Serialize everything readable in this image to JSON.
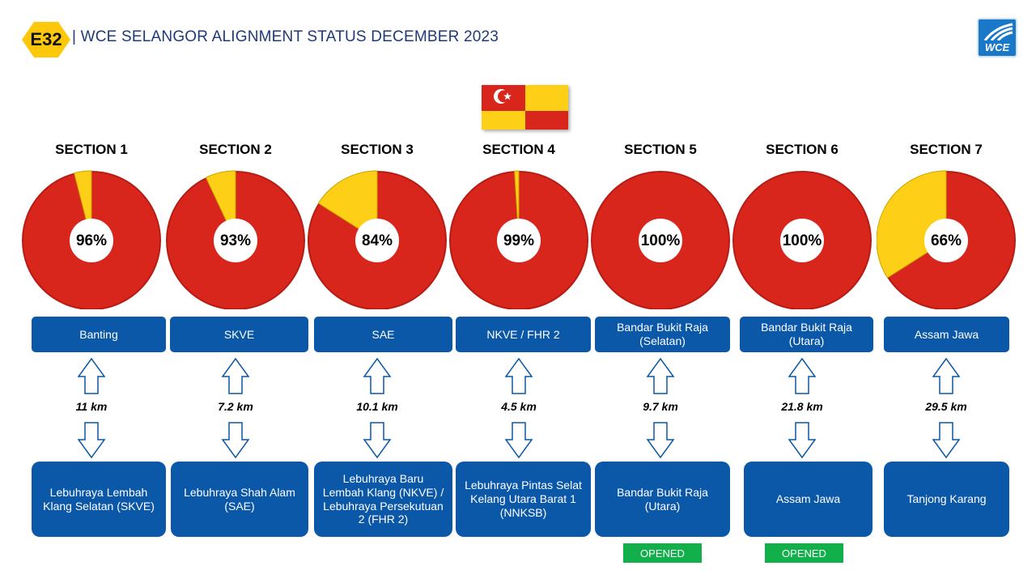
{
  "header": {
    "badge": "E32",
    "title": "| WCE SELANGOR ALIGNMENT STATUS DECEMBER 2023",
    "logo": "WCE"
  },
  "colors": {
    "red": "#d8261c",
    "yellow": "#fdd017",
    "blue": "#0b57a8",
    "green": "#12b04a"
  },
  "sections": [
    {
      "title": "SECTION 1",
      "percent": 96,
      "percent_label": "96%",
      "from": "Banting",
      "distance": "11 km",
      "to": "Lebuhraya Lembah Klang Selatan (SKVE)",
      "status": null
    },
    {
      "title": "SECTION 2",
      "percent": 93,
      "percent_label": "93%",
      "from": "SKVE",
      "distance": "7.2 km",
      "to": "Lebuhraya Shah Alam (SAE)",
      "status": null
    },
    {
      "title": "SECTION 3",
      "percent": 84,
      "percent_label": "84%",
      "from": "SAE",
      "distance": "10.1 km",
      "to": "Lebuhraya Baru Lembah Klang (NKVE) / Lebuhraya Persekutuan 2 (FHR 2)",
      "status": null
    },
    {
      "title": "SECTION 4",
      "percent": 99,
      "percent_label": "99%",
      "from": "NKVE / FHR 2",
      "distance": "4.5 km",
      "to": "Lebuhraya Pintas Selat Kelang Utara Barat 1 (NNKSB)",
      "status": null
    },
    {
      "title": "SECTION 5",
      "percent": 100,
      "percent_label": "100%",
      "from": "Bandar Bukit Raja (Selatan)",
      "distance": "9.7 km",
      "to": "Bandar Bukit Raja (Utara)",
      "status": "OPENED"
    },
    {
      "title": "SECTION 6",
      "percent": 100,
      "percent_label": "100%",
      "from": "Bandar Bukit Raja (Utara)",
      "distance": "21.8 km",
      "to": "Assam Jawa",
      "status": "OPENED"
    },
    {
      "title": "SECTION 7",
      "percent": 66,
      "percent_label": "66%",
      "from": "Assam Jawa",
      "distance": "29.5 km",
      "to": "Tanjong Karang",
      "status": null
    }
  ]
}
